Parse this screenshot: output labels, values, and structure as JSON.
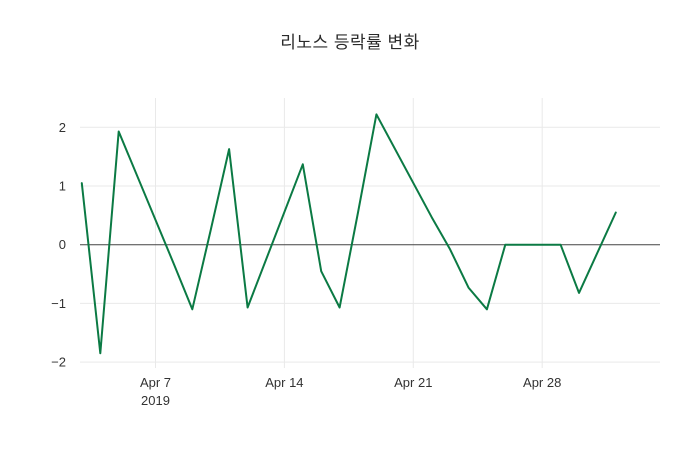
{
  "chart_data": {
    "type": "line",
    "title": "리노스 등락률 변화",
    "series_name": "등락률",
    "x_dates": [
      "2019-04-03",
      "2019-04-04",
      "2019-04-05",
      "2019-04-08",
      "2019-04-09",
      "2019-04-10",
      "2019-04-11",
      "2019-04-12",
      "2019-04-15",
      "2019-04-16",
      "2019-04-17",
      "2019-04-18",
      "2019-04-19",
      "2019-04-22",
      "2019-04-23",
      "2019-04-24",
      "2019-04-25",
      "2019-04-26",
      "2019-04-29",
      "2019-04-30",
      "2019-05-02"
    ],
    "x_day": [
      3,
      4,
      5,
      8,
      9,
      10,
      11,
      12,
      15,
      16,
      17,
      18,
      19,
      22,
      23,
      24,
      25,
      26,
      29,
      30,
      32
    ],
    "values": [
      1.05,
      -1.85,
      1.93,
      -0.33,
      -1.1,
      0.25,
      1.63,
      -1.07,
      1.37,
      -0.45,
      -1.07,
      0.55,
      2.22,
      0.47,
      -0.08,
      -0.73,
      -1.1,
      0.0,
      0.0,
      -0.82,
      0.55
    ],
    "xlim_days": [
      2.9,
      34.4
    ],
    "ylim": [
      -2.1,
      2.5
    ],
    "xticks": [
      {
        "value": 7,
        "label": "Apr 7",
        "sublabel": "2019"
      },
      {
        "value": 14,
        "label": "Apr 14",
        "sublabel": ""
      },
      {
        "value": 21,
        "label": "Apr 21",
        "sublabel": ""
      },
      {
        "value": 28,
        "label": "Apr 28",
        "sublabel": ""
      }
    ],
    "yticks": [
      {
        "value": -2,
        "label": "−2"
      },
      {
        "value": -1,
        "label": "−1"
      },
      {
        "value": 0,
        "label": "0"
      },
      {
        "value": 1,
        "label": "1"
      },
      {
        "value": 2,
        "label": "2"
      }
    ],
    "grid": true,
    "legend": "none",
    "colors": {
      "line": "#0b7a44",
      "grid": "#e9e9e9",
      "zeroline": "#444444",
      "text": "#333333",
      "background": "#ffffff"
    }
  }
}
